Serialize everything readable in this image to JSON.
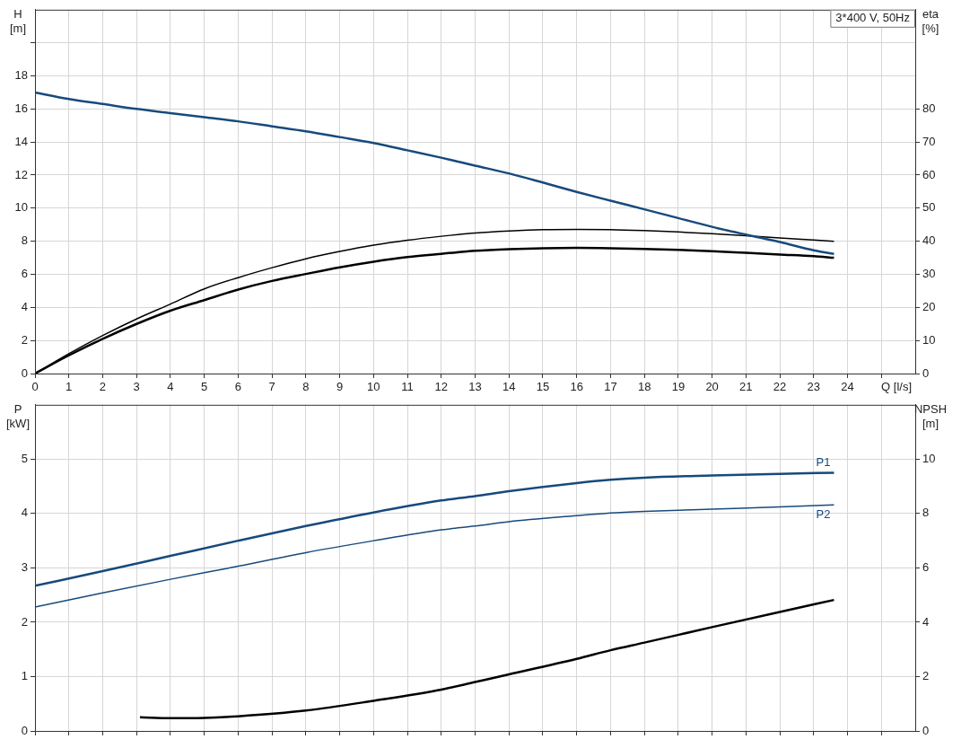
{
  "chart_data": [
    {
      "type": "line",
      "xlabel": "Q [l/s]",
      "ylabel": "H [m]",
      "y2label": "eta [%]",
      "annotations": [
        "3*400 V, 50Hz"
      ],
      "grid": true,
      "x": [
        0,
        1,
        2,
        3,
        4,
        5,
        6,
        7,
        8,
        9,
        10,
        11,
        12,
        13,
        14,
        15,
        16,
        17,
        18,
        19,
        20,
        21,
        22,
        23,
        23.6
      ],
      "xlim": [
        0,
        26
      ],
      "xticks": [
        0,
        1,
        2,
        3,
        4,
        5,
        6,
        7,
        8,
        9,
        10,
        11,
        12,
        13,
        14,
        15,
        16,
        17,
        18,
        19,
        20,
        21,
        22,
        23,
        24,
        {
          "value": 25,
          "label": null
        }
      ],
      "ylim": [
        0,
        22
      ],
      "yticks": [
        0,
        2,
        4,
        6,
        8,
        10,
        12,
        14,
        16,
        18,
        {
          "value": 20,
          "label": null
        }
      ],
      "y2lim": [
        0,
        110
      ],
      "y2ticks": [
        0,
        10,
        20,
        30,
        40,
        50,
        60,
        70,
        80
      ],
      "series": [
        {
          "color": "#174a7c",
          "values": [
            17.0,
            16.6,
            16.3,
            16.0,
            15.75,
            15.5,
            15.25,
            14.95,
            14.65,
            14.3,
            13.94,
            13.5,
            13.05,
            12.57,
            12.1,
            11.55,
            10.98,
            10.45,
            9.93,
            9.4,
            8.87,
            8.4,
            7.95,
            7.45,
            7.23
          ]
        },
        {
          "color": "#000000",
          "axis": "y2",
          "values": [
            0,
            6,
            11.5,
            16.5,
            21,
            25.6,
            29,
            32,
            34.7,
            36.9,
            38.8,
            40.3,
            41.5,
            42.5,
            43.1,
            43.5,
            43.6,
            43.5,
            43.2,
            42.8,
            42.3,
            41.7,
            41,
            40.4,
            40
          ]
        },
        {
          "color": "#000000",
          "axis": "y2",
          "values": [
            0,
            5.5,
            10.5,
            15,
            19,
            22.2,
            25.4,
            28,
            30.1,
            32.1,
            33.8,
            35.2,
            36.2,
            37.1,
            37.6,
            37.9,
            38,
            37.9,
            37.7,
            37.4,
            37,
            36.5,
            36,
            35.5,
            35
          ]
        }
      ]
    },
    {
      "type": "line",
      "ylabel": "P [kW]",
      "y2label": "NPSH [m]",
      "grid": true,
      "tick_labels": "y",
      "xlim": [
        0,
        26
      ],
      "xticks": [
        0,
        1,
        2,
        3,
        4,
        5,
        6,
        7,
        8,
        9,
        10,
        11,
        12,
        13,
        14,
        15,
        16,
        17,
        18,
        19,
        20,
        21,
        22,
        23,
        24,
        {
          "value": 25,
          "label": null
        }
      ],
      "ylim": [
        0,
        6
      ],
      "yticks": [
        0,
        1,
        2,
        3,
        4,
        5
      ],
      "y2lim": [
        0,
        12
      ],
      "y2ticks": [
        0,
        2,
        4,
        6,
        8,
        10
      ],
      "series": [
        {
          "name": "P1",
          "color": "#174a7c",
          "x": [
            0,
            2,
            4,
            6,
            8,
            10,
            12,
            13,
            14,
            16,
            17,
            18,
            20,
            22,
            23.6
          ],
          "values": [
            2.67,
            2.94,
            3.22,
            3.5,
            3.77,
            4.02,
            4.24,
            4.32,
            4.41,
            4.56,
            4.62,
            4.66,
            4.7,
            4.73,
            4.75
          ]
        },
        {
          "name": "P2",
          "color": "#174a7c",
          "x": [
            0,
            2,
            4,
            6,
            8,
            10,
            12,
            13,
            14,
            16,
            17,
            18,
            20,
            22,
            23.6
          ],
          "values": [
            2.28,
            2.54,
            2.79,
            3.03,
            3.28,
            3.5,
            3.7,
            3.77,
            3.85,
            3.96,
            4.01,
            4.04,
            4.08,
            4.12,
            4.16
          ]
        },
        {
          "color": "#000000",
          "axis": "y2",
          "x": [
            3.1,
            4,
            5,
            6,
            8,
            10,
            12,
            13,
            14,
            16,
            17,
            18,
            20,
            22,
            23.6
          ],
          "values": [
            0.5,
            0.47,
            0.48,
            0.54,
            0.75,
            1.11,
            1.52,
            1.8,
            2.08,
            2.65,
            2.97,
            3.25,
            3.82,
            4.38,
            4.82
          ]
        }
      ]
    }
  ]
}
